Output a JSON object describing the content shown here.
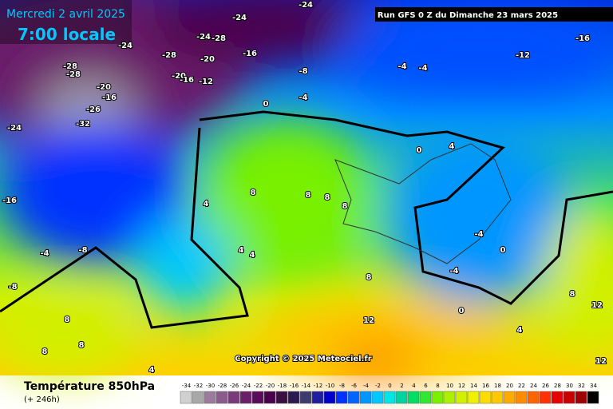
{
  "header": {
    "date": "Mercredi 2 avril 2025",
    "time": "7:00 locale",
    "run": "Run GFS 0 Z du Dimanche 23 mars 2025"
  },
  "map": {
    "labels": [
      -24,
      -24,
      -24,
      -28,
      -24,
      -28,
      -20,
      -16,
      -20,
      -16,
      -12,
      -28,
      -28,
      -20,
      -16,
      -26,
      -32,
      -24,
      -8,
      -4,
      -4,
      -4,
      -12,
      -16,
      -16,
      -4,
      -8,
      -8,
      4,
      8,
      8,
      8,
      8,
      4,
      4,
      8,
      12,
      0,
      4,
      0,
      0,
      4,
      8,
      12,
      12,
      8,
      8,
      8,
      4,
      -4,
      -4,
      0
    ],
    "copyright": "Copyright © 2025 Meteociel.fr"
  },
  "footer": {
    "title": "Température 850hPa",
    "lead": "(+ 246h)"
  },
  "legend": {
    "ticks": [
      -34,
      -32,
      -30,
      -28,
      -26,
      -24,
      -22,
      -20,
      -18,
      -16,
      -14,
      -12,
      -10,
      -8,
      -6,
      -4,
      -2,
      0,
      2,
      4,
      6,
      8,
      10,
      12,
      14,
      16,
      18,
      20,
      22,
      24,
      26,
      28,
      30,
      32,
      34
    ],
    "colors": [
      "#d0d0d0",
      "#a8a8a8",
      "#9b7b9b",
      "#8c5a8c",
      "#7a3a7a",
      "#6a1f6a",
      "#5a0a5a",
      "#4b004b",
      "#3a1040",
      "#2a1a50",
      "#3c3c6e",
      "#1e1e9e",
      "#0000c8",
      "#0032ff",
      "#0064ff",
      "#0096ff",
      "#00c8ff",
      "#00e6e6",
      "#00d2a0",
      "#00dc64",
      "#32e632",
      "#78f000",
      "#aaf000",
      "#d2f000",
      "#f0f000",
      "#ffdc00",
      "#ffc800",
      "#ffaa00",
      "#ff8c00",
      "#ff6400",
      "#ff3200",
      "#e60000",
      "#c80000",
      "#a00000",
      "#000000"
    ]
  }
}
